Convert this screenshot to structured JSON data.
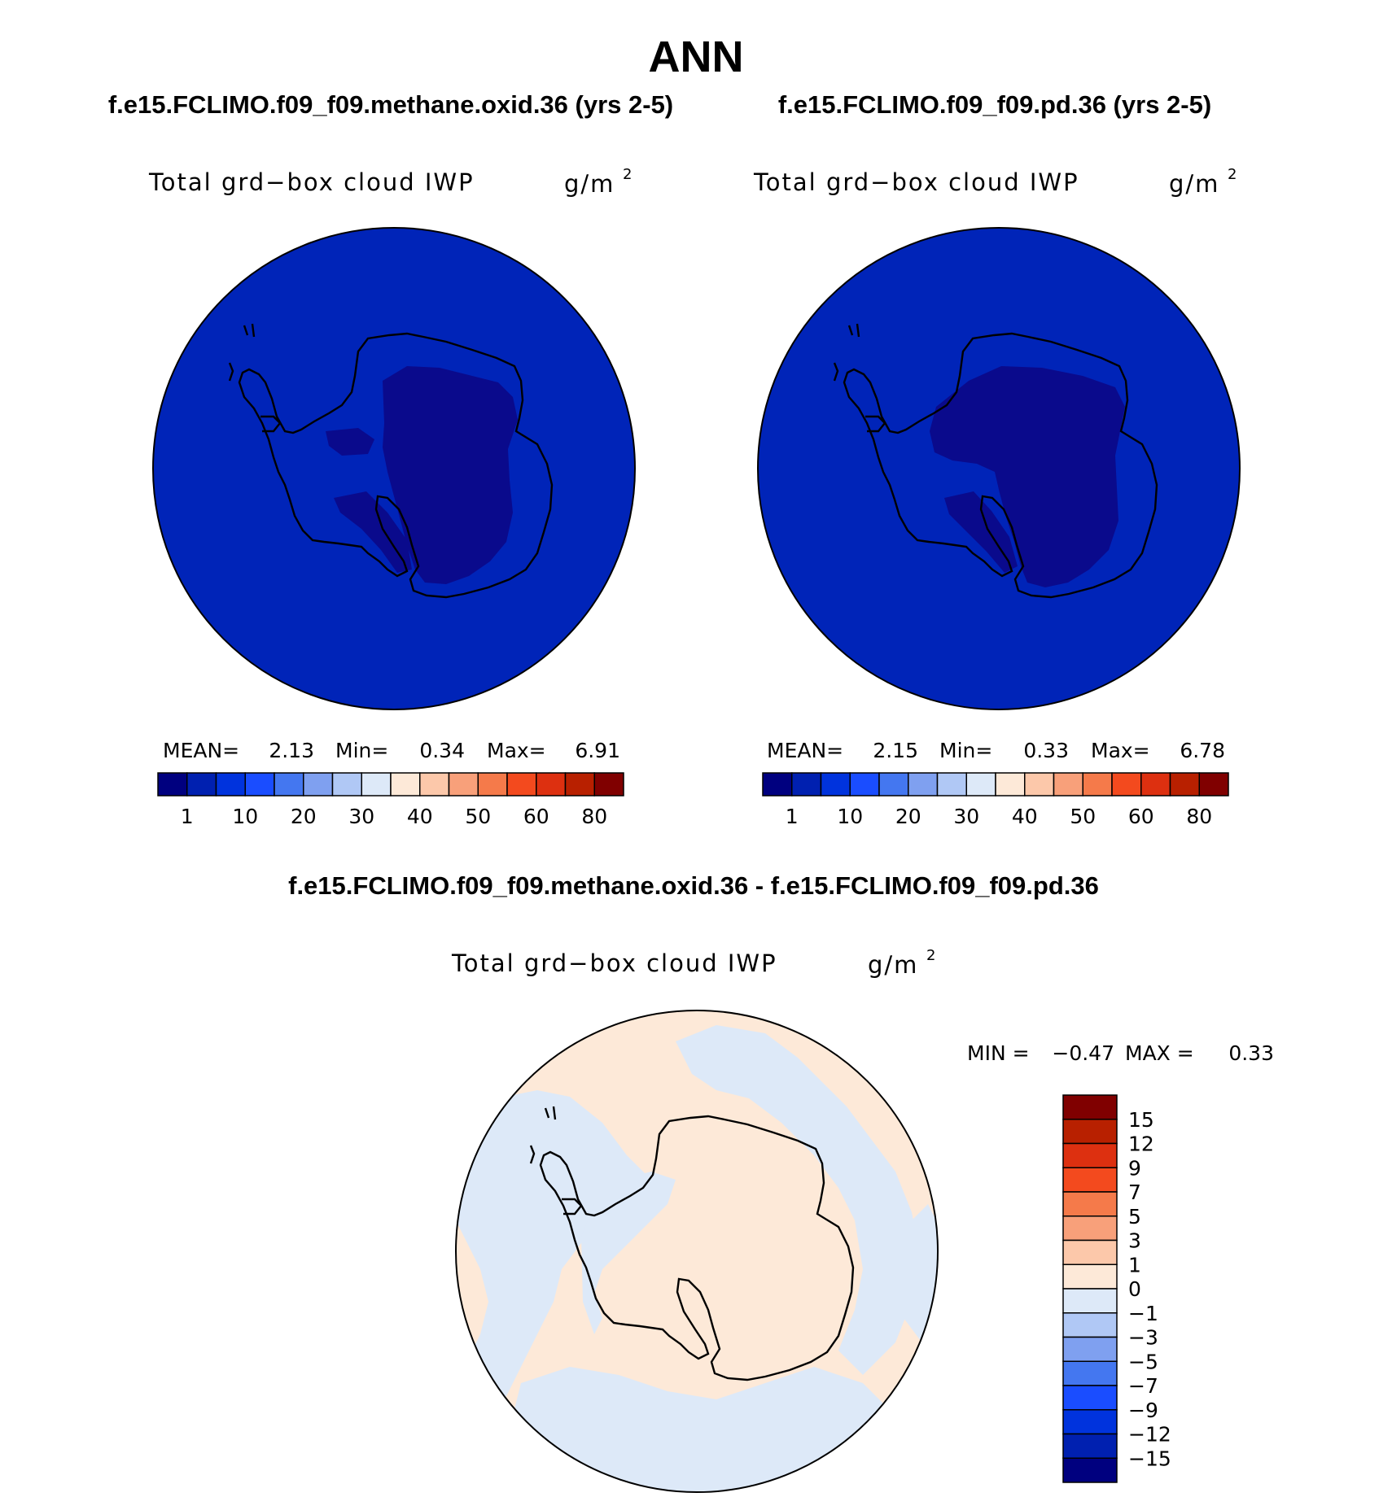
{
  "page": {
    "title": "ANN",
    "diff_header": "f.e15.FCLIMO.f09_f09.methane.oxid.36 - f.e15.FCLIMO.f09_f09.pd.36"
  },
  "colors": {
    "abs_palette": [
      "#00007f",
      "#0020b0",
      "#0033dd",
      "#1a4dff",
      "#4477f0",
      "#7fa0f0",
      "#b0c8f5",
      "#dde9f8",
      "#fde9d8",
      "#fcc8aa",
      "#f8a07a",
      "#f57a4a",
      "#f34a1e",
      "#dd3010",
      "#b82000",
      "#800000"
    ],
    "diff_palette": [
      "#00007f",
      "#0020b0",
      "#0033dd",
      "#1a4dff",
      "#4477f0",
      "#7fa0f0",
      "#b0c8f5",
      "#dde9f8",
      "#fde9d8",
      "#fcc8aa",
      "#f8a07a",
      "#f57a4a",
      "#f34a1e",
      "#dd3010",
      "#b82000",
      "#800000"
    ],
    "map_abs_ocean": "#0024b8",
    "map_abs_low": "#0a0a8c",
    "map_diff_pos": "#fde9d8",
    "map_diff_neg": "#dde9f8",
    "coast": "#000000"
  },
  "chart_data": [
    {
      "type": "heatmap",
      "projection": "south-polar-stereographic",
      "case": "f.e15.FCLIMO.f09_f09.methane.oxid.36 (yrs 2-5)",
      "field": "Total grd−box cloud IWP",
      "units_base": "g/m",
      "units_exp": "2",
      "stats": {
        "mean_label": "MEAN=",
        "mean": "2.13",
        "min_label": "Min=",
        "min": "0.34",
        "max_label": "Max=",
        "max": "6.91"
      },
      "contour_levels": [
        "1",
        "10",
        "20",
        "30",
        "40",
        "50",
        "60",
        "80"
      ],
      "legend_placement": "bottom"
    },
    {
      "type": "heatmap",
      "projection": "south-polar-stereographic",
      "case": "f.e15.FCLIMO.f09_f09.pd.36 (yrs 2-5)",
      "field": "Total grd−box cloud IWP",
      "units_base": "g/m",
      "units_exp": "2",
      "stats": {
        "mean_label": "MEAN=",
        "mean": "2.15",
        "min_label": "Min=",
        "min": "0.33",
        "max_label": "Max=",
        "max": "6.78"
      },
      "contour_levels": [
        "1",
        "10",
        "20",
        "30",
        "40",
        "50",
        "60",
        "80"
      ],
      "legend_placement": "bottom"
    },
    {
      "type": "heatmap",
      "projection": "south-polar-stereographic",
      "case": "f.e15.FCLIMO.f09_f09.methane.oxid.36 - f.e15.FCLIMO.f09_f09.pd.36",
      "field": "Total grd−box cloud IWP",
      "units_base": "g/m",
      "units_exp": "2",
      "stats": {
        "min_label": "MIN =",
        "min": "−0.47",
        "max_label": "MAX =",
        "max": "0.33"
      },
      "contour_levels": [
        "15",
        "12",
        "9",
        "7",
        "5",
        "3",
        "1",
        "0",
        "−1",
        "−3",
        "−5",
        "−7",
        "−9",
        "−12",
        "−15"
      ],
      "legend_placement": "right"
    }
  ]
}
